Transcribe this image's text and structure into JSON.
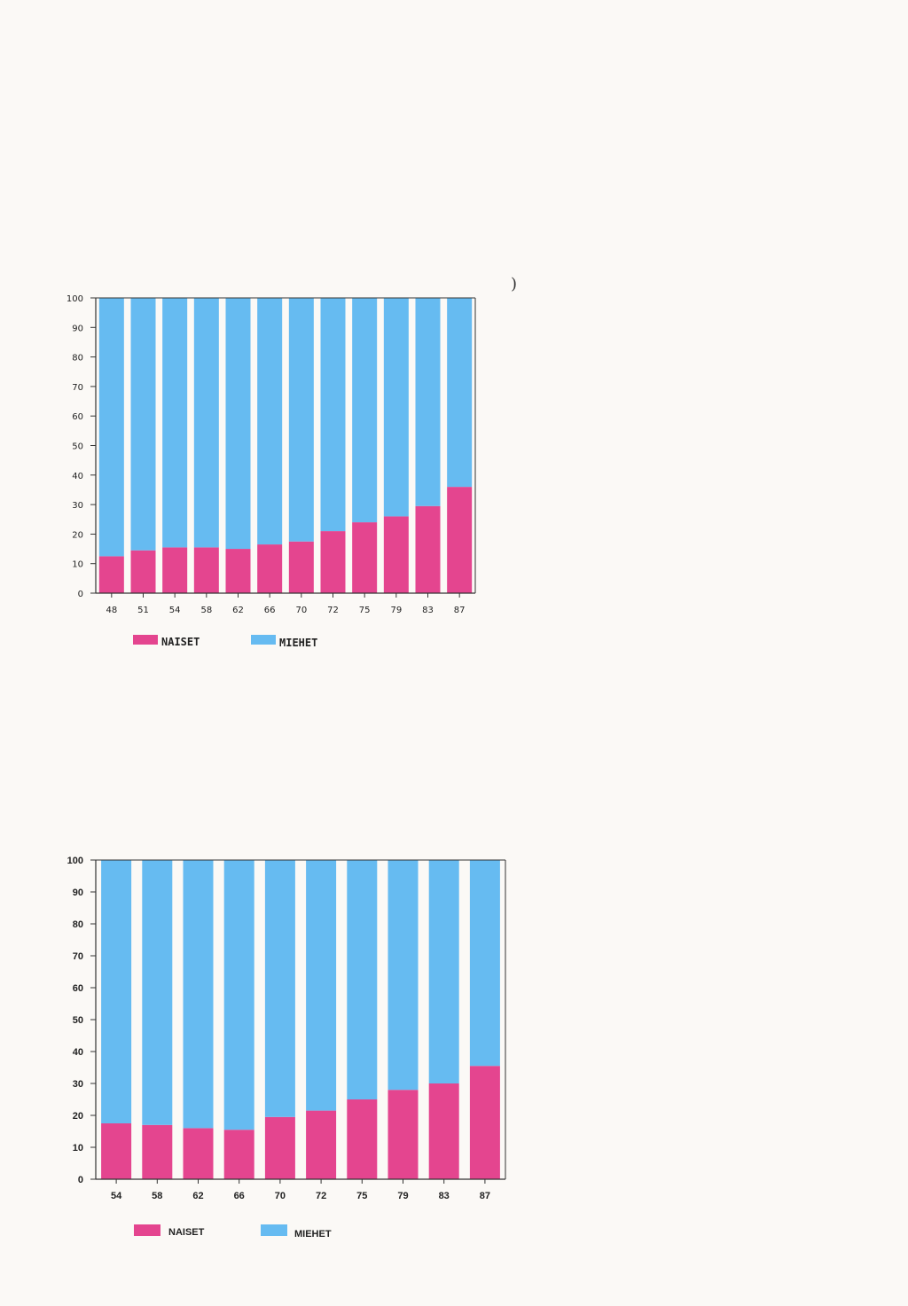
{
  "colors": {
    "background": "#fbf9f6",
    "naiset": "#e4458f",
    "miehet": "#66bbf1",
    "axis": "#333333"
  },
  "stray_mark": ")",
  "chart_data": [
    {
      "type": "bar",
      "stacked": true,
      "percent": true,
      "title": "",
      "xlabel": "",
      "ylabel": "",
      "ylim": [
        0,
        100
      ],
      "yticks": [
        "0",
        "10",
        "20",
        "30",
        "40",
        "50",
        "60",
        "70",
        "80",
        "90",
        "100"
      ],
      "categories": [
        "48",
        "51",
        "54",
        "58",
        "62",
        "66",
        "70",
        "72",
        "75",
        "79",
        "83",
        "87"
      ],
      "series": [
        {
          "name": "NAISET",
          "color": "#e4458f",
          "values": [
            12.5,
            14.5,
            15.5,
            15.5,
            15,
            16.5,
            17.5,
            21,
            24,
            26,
            29.5,
            36
          ]
        },
        {
          "name": "MIEHET",
          "color": "#66bbf1",
          "values": [
            87.5,
            85.5,
            84.5,
            84.5,
            85,
            83.5,
            82.5,
            79,
            76,
            74,
            70.5,
            64
          ]
        }
      ],
      "legend": {
        "position": "bottom",
        "items": [
          "NAISET",
          "MIEHET"
        ]
      }
    },
    {
      "type": "bar",
      "stacked": true,
      "percent": true,
      "title": "",
      "xlabel": "",
      "ylabel": "",
      "ylim": [
        0,
        100
      ],
      "yticks": [
        "0",
        "10",
        "20",
        "30",
        "40",
        "50",
        "60",
        "70",
        "80",
        "90",
        "100"
      ],
      "categories": [
        "54",
        "58",
        "62",
        "66",
        "70",
        "72",
        "75",
        "79",
        "83",
        "87"
      ],
      "series": [
        {
          "name": "NAISET",
          "color": "#e4458f",
          "values": [
            17.5,
            17,
            16,
            15.5,
            19.5,
            21.5,
            25,
            28,
            30,
            35.5
          ]
        },
        {
          "name": "MIEHET",
          "color": "#66bbf1",
          "values": [
            82.5,
            83,
            84,
            84.5,
            80.5,
            78.5,
            75,
            72,
            70,
            64.5
          ]
        }
      ],
      "legend": {
        "position": "bottom",
        "items": [
          "NAISET",
          "MIEHET"
        ]
      }
    }
  ]
}
